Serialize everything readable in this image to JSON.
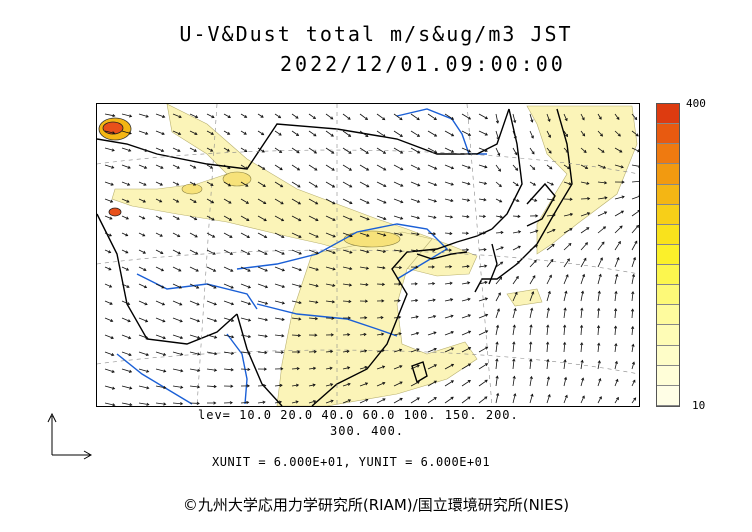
{
  "title": "U-V&Dust total m/s&ug/m3 JST",
  "datetime": "2022/12/01.09:00:00",
  "colorbar": {
    "max_label": "400",
    "min_label": "10",
    "colors": [
      "#dd3b10",
      "#e85a10",
      "#ef7a10",
      "#f29a10",
      "#f4b614",
      "#f7cf18",
      "#f9e21c",
      "#fbf02a",
      "#fcf64e",
      "#fdf978",
      "#fefb9e",
      "#fefcb6",
      "#fefdc8",
      "#fffed8",
      "#fffee6"
    ]
  },
  "levels": {
    "line1": "lev= 10.0 20.0 40.0 60.0 100. 150. 200.",
    "line2": "300. 400."
  },
  "units": "XUNIT = 6.000E+01, YUNIT = 6.000E+01",
  "copyright": "©九州大学応用力学研究所(RIAM)/国立環境研究所(NIES)",
  "colors": {
    "dust_light": "#fbf4b8",
    "dust_mid": "#f7e27a",
    "dust_high": "#e8501a",
    "rivers": "#1a5fd6",
    "borders": "#000000"
  }
}
